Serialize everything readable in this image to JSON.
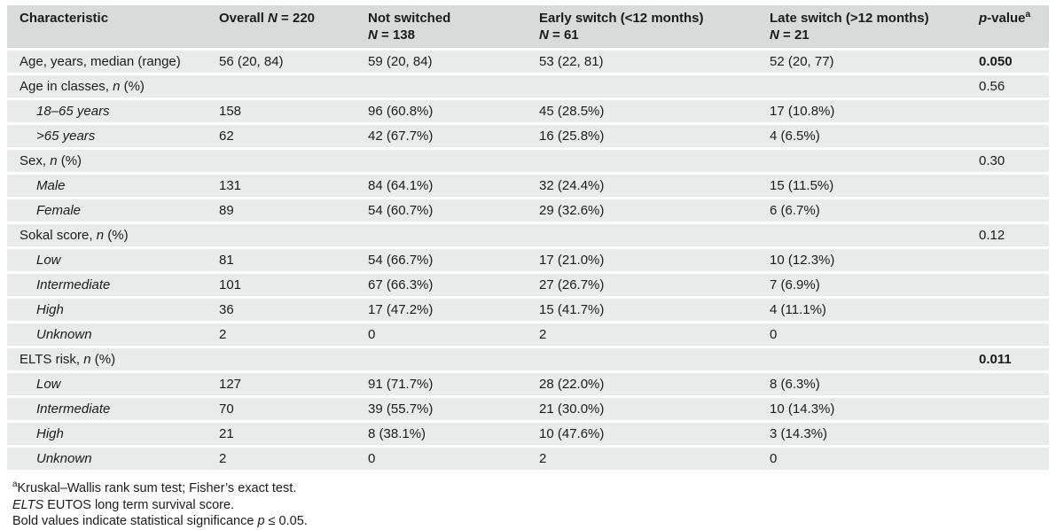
{
  "colors": {
    "header_bg": "#d9dada",
    "row_bg": "#e9eaea",
    "separator": "#ffffff",
    "text": "#1b1b1b"
  },
  "table": {
    "columns": [
      "Characteristic",
      "Overall *N* = 220",
      "Not switched\n*N* = 138",
      "Early switch (<12 months)\n*N* = 61",
      "Late switch (>12 months)\n*N* = 21",
      "*p*-value^a^"
    ],
    "rows": [
      {
        "label": "Age, years, median (range)",
        "indent": false,
        "cells": [
          "56 (20, 84)",
          "59 (20, 84)",
          "53 (22, 81)",
          "52 (20, 77)"
        ],
        "p": "0.050",
        "p_bold": true
      },
      {
        "label": "Age in classes, *n* (%)",
        "indent": false,
        "cells": [
          "",
          "",
          "",
          ""
        ],
        "p": "0.56",
        "p_bold": false
      },
      {
        "label": "*18–65 years*",
        "indent": true,
        "cells": [
          "158",
          "96 (60.8%)",
          "45 (28.5%)",
          "17 (10.8%)"
        ],
        "p": "",
        "p_bold": false
      },
      {
        "label": "*>65 years*",
        "indent": true,
        "cells": [
          "62",
          "42 (67.7%)",
          "16 (25.8%)",
          "4 (6.5%)"
        ],
        "p": "",
        "p_bold": false
      },
      {
        "label": "Sex, *n* (%)",
        "indent": false,
        "cells": [
          "",
          "",
          "",
          ""
        ],
        "p": "0.30",
        "p_bold": false
      },
      {
        "label": "*Male*",
        "indent": true,
        "cells": [
          "131",
          "84 (64.1%)",
          "32 (24.4%)",
          "15 (11.5%)"
        ],
        "p": "",
        "p_bold": false
      },
      {
        "label": "*Female*",
        "indent": true,
        "cells": [
          "89",
          "54 (60.7%)",
          "29 (32.6%)",
          "6 (6.7%)"
        ],
        "p": "",
        "p_bold": false
      },
      {
        "label": "Sokal score, *n* (%)",
        "indent": false,
        "cells": [
          "",
          "",
          "",
          ""
        ],
        "p": "0.12",
        "p_bold": false
      },
      {
        "label": "*Low*",
        "indent": true,
        "cells": [
          "81",
          "54 (66.7%)",
          "17 (21.0%)",
          "10 (12.3%)"
        ],
        "p": "",
        "p_bold": false
      },
      {
        "label": "*Intermediate*",
        "indent": true,
        "cells": [
          "101",
          "67 (66.3%)",
          "27 (26.7%)",
          "7 (6.9%)"
        ],
        "p": "",
        "p_bold": false
      },
      {
        "label": "*High*",
        "indent": true,
        "cells": [
          "36",
          "17 (47.2%)",
          "15 (41.7%)",
          "4 (11.1%)"
        ],
        "p": "",
        "p_bold": false
      },
      {
        "label": "*Unknown*",
        "indent": true,
        "cells": [
          "2",
          "0",
          "2",
          "0"
        ],
        "p": "",
        "p_bold": false
      },
      {
        "label": "ELTS risk, *n* (%)",
        "indent": false,
        "cells": [
          "",
          "",
          "",
          ""
        ],
        "p": "0.011",
        "p_bold": true
      },
      {
        "label": "*Low*",
        "indent": true,
        "cells": [
          "127",
          "91 (71.7%)",
          "28 (22.0%)",
          "8 (6.3%)"
        ],
        "p": "",
        "p_bold": false
      },
      {
        "label": "*Intermediate*",
        "indent": true,
        "cells": [
          "70",
          "39 (55.7%)",
          "21 (30.0%)",
          "10 (14.3%)"
        ],
        "p": "",
        "p_bold": false
      },
      {
        "label": "*High*",
        "indent": true,
        "cells": [
          "21",
          "8 (38.1%)",
          "10 (47.6%)",
          "3 (14.3%)"
        ],
        "p": "",
        "p_bold": false
      },
      {
        "label": "*Unknown*",
        "indent": true,
        "cells": [
          "2",
          "0",
          "2",
          "0"
        ],
        "p": "",
        "p_bold": false
      }
    ]
  },
  "footnotes": [
    "^a^Kruskal–Wallis rank sum test; Fisher’s exact test.",
    "*ELTS* EUTOS long term survival score.",
    "Bold values indicate statistical significance *p* ≤ 0.05."
  ]
}
